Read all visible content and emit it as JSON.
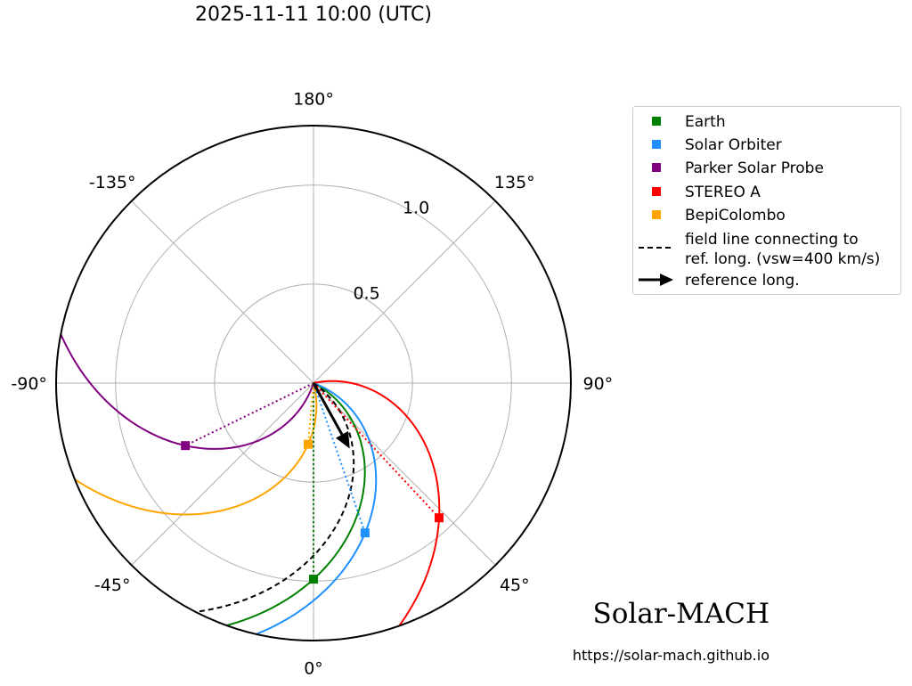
{
  "chart_data": {
    "type": "polar",
    "title": "2025-11-11 10:00 (UTC)",
    "radial_ticks": [
      "0.5",
      "1.0"
    ],
    "radial_tick_values": [
      0.5,
      1.0
    ],
    "r_max": 1.3,
    "angle_tick_values": [
      0,
      45,
      90,
      135,
      180,
      -135,
      -90,
      -45
    ],
    "angle_tick_labels": [
      "0°",
      "45°",
      "90°",
      "135°",
      "180°",
      "-135°",
      "-90°",
      "-45°"
    ],
    "reference_longitude": 29,
    "solar_wind_speed_km_s": 400,
    "bodies": [
      {
        "name": "Earth",
        "color": "#008000",
        "r": 0.99,
        "lon": 0
      },
      {
        "name": "Solar Orbiter",
        "color": "#1e90ff",
        "r": 0.8,
        "lon": 19
      },
      {
        "name": "Parker Solar Probe",
        "color": "#800080",
        "r": 0.72,
        "lon": -64
      },
      {
        "name": "STEREO A",
        "color": "#ff0000",
        "r": 0.93,
        "lon": 43
      },
      {
        "name": "BepiColombo",
        "color": "#ffa500",
        "r": 0.31,
        "lon": -5
      }
    ],
    "field_line_label": "field line connecting to\nref. long. (vsw=400 km/s)",
    "reference_label": "reference long.",
    "legend_position": "upper right, outside plot"
  },
  "branding": {
    "name": "Solar-MACH",
    "url": "https://solar-mach.github.io"
  }
}
